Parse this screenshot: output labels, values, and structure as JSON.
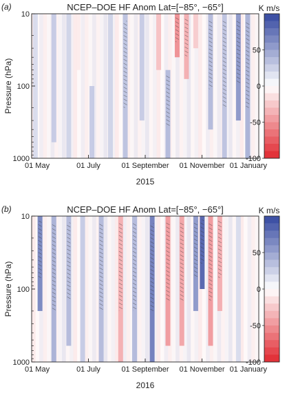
{
  "chart_data": [
    {
      "panel_label": "(a)",
      "title": "NCEP–DOE HF Anom Lat=[−85°, −65°]",
      "type": "heatmap",
      "ylabel": "Pressure (hPa)",
      "xlabel": "2015",
      "yscale": "log",
      "ylim": [
        1000,
        10
      ],
      "y_ticks": [
        "10",
        "100",
        "1000"
      ],
      "x_ticks": [
        "01 May",
        "01 July",
        "01 September",
        "01 November",
        "01 January"
      ],
      "colorbar": {
        "unit": "K m/s",
        "ticks": [
          50,
          0,
          -50,
          -100
        ],
        "range": [
          -100,
          100
        ]
      },
      "hatching": true,
      "features": [
        {
          "date": "2015-05-05",
          "value": 20,
          "pmin": 10,
          "pmax": 1000
        },
        {
          "date": "2015-05-25",
          "value": 30,
          "pmin": 10,
          "pmax": 600
        },
        {
          "date": "2015-06-10",
          "value": 25,
          "pmin": 10,
          "pmax": 1000
        },
        {
          "date": "2015-06-20",
          "value": -10,
          "pmin": 10,
          "pmax": 60
        },
        {
          "date": "2015-07-05",
          "value": 30,
          "pmin": 100,
          "pmax": 1000
        },
        {
          "date": "2015-07-25",
          "value": 25,
          "pmin": 10,
          "pmax": 1000
        },
        {
          "date": "2015-08-10",
          "value": 35,
          "pmin": 10,
          "pmax": 1000
        },
        {
          "date": "2015-08-28",
          "value": 30,
          "pmin": 10,
          "pmax": 300
        },
        {
          "date": "2015-09-15",
          "value": -30,
          "pmin": 10,
          "pmax": 60
        },
        {
          "date": "2015-09-25",
          "value": 40,
          "pmin": 60,
          "pmax": 1000
        },
        {
          "date": "2015-10-05",
          "value": -55,
          "pmin": 10,
          "pmax": 40
        },
        {
          "date": "2015-10-15",
          "value": -40,
          "pmin": 10,
          "pmax": 80
        },
        {
          "date": "2015-10-25",
          "value": -25,
          "pmin": 10,
          "pmax": 30
        },
        {
          "date": "2015-11-10",
          "value": 40,
          "pmin": 10,
          "pmax": 400
        },
        {
          "date": "2015-11-25",
          "value": 35,
          "pmin": 10,
          "pmax": 1000
        },
        {
          "date": "2015-12-10",
          "value": 60,
          "pmin": 10,
          "pmax": 300
        },
        {
          "date": "2015-12-20",
          "value": 45,
          "pmin": 10,
          "pmax": 1000
        }
      ]
    },
    {
      "panel_label": "(b)",
      "title": "NCEP–DOE HF Anom Lat=[−85°, −65°]",
      "type": "heatmap",
      "ylabel": "Pressure (hPa)",
      "xlabel": "2016",
      "yscale": "log",
      "ylim": [
        1000,
        10
      ],
      "y_ticks": [
        "10",
        "100",
        "1000"
      ],
      "x_ticks": [
        "01 May",
        "01 July",
        "01 September",
        "01 November",
        "01 January"
      ],
      "colorbar": {
        "unit": "K m/s",
        "ticks": [
          50,
          0,
          -50,
          -100
        ],
        "range": [
          -100,
          100
        ]
      },
      "hatching": true,
      "features": [
        {
          "date": "2016-05-10",
          "value": 70,
          "pmin": 10,
          "pmax": 200
        },
        {
          "date": "2016-05-25",
          "value": 45,
          "pmin": 10,
          "pmax": 1000
        },
        {
          "date": "2016-06-10",
          "value": 40,
          "pmin": 10,
          "pmax": 600
        },
        {
          "date": "2016-06-25",
          "value": 30,
          "pmin": 10,
          "pmax": 1000
        },
        {
          "date": "2016-07-15",
          "value": 40,
          "pmin": 10,
          "pmax": 1000
        },
        {
          "date": "2016-08-05",
          "value": -40,
          "pmin": 10,
          "pmax": 1000
        },
        {
          "date": "2016-08-20",
          "value": 40,
          "pmin": 10,
          "pmax": 1000
        },
        {
          "date": "2016-09-08",
          "value": 75,
          "pmin": 10,
          "pmax": 1000
        },
        {
          "date": "2016-09-25",
          "value": -50,
          "pmin": 10,
          "pmax": 600
        },
        {
          "date": "2016-10-10",
          "value": -45,
          "pmin": 10,
          "pmax": 600
        },
        {
          "date": "2016-10-25",
          "value": 60,
          "pmin": 10,
          "pmax": 200
        },
        {
          "date": "2016-11-01",
          "value": 90,
          "pmin": 10,
          "pmax": 100
        },
        {
          "date": "2016-11-10",
          "value": -50,
          "pmin": 10,
          "pmax": 600
        },
        {
          "date": "2016-11-20",
          "value": -40,
          "pmin": 10,
          "pmax": 200
        },
        {
          "date": "2016-12-10",
          "value": 20,
          "pmin": 10,
          "pmax": 1000
        }
      ]
    }
  ]
}
